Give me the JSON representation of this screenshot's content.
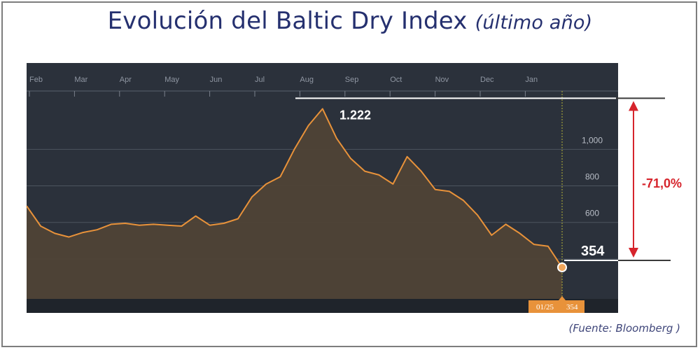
{
  "header": {
    "title_main": "Evolución del Baltic Dry Index",
    "title_sub": "(último año)"
  },
  "footer": {
    "source": "(Fuente: Bloomberg )"
  },
  "annotations": {
    "peak_label": "1.222",
    "last_label": "354",
    "change_label": "-71,0%",
    "badge_date": "01/25",
    "badge_value": "354"
  },
  "colors": {
    "plot_bg": "#2b313b",
    "bottom_strip": "#1f242b",
    "line": "#e8923a",
    "area_fill": "#4f4336",
    "arrow": "#d6242c",
    "badge": "#e8923a",
    "title": "#25306f"
  },
  "chart_data": {
    "type": "area",
    "title": "Evolución del Baltic Dry Index (último año)",
    "xlabel": "",
    "ylabel": "",
    "x_ticks": [
      "Feb",
      "Mar",
      "Apr",
      "May",
      "Jun",
      "Jul",
      "Aug",
      "Sep",
      "Oct",
      "Nov",
      "Dec",
      "Jan"
    ],
    "y_ticks": [
      "600",
      "800",
      "1,000"
    ],
    "ylim": [
      170,
      1300
    ],
    "grid": "horizontal",
    "series": [
      {
        "name": "",
        "x": [
          "Feb",
          "Feb",
          "Feb",
          "Mar",
          "Mar",
          "Mar",
          "Apr",
          "Apr",
          "Apr",
          "May",
          "May",
          "May",
          "Jun",
          "Jun",
          "Jun",
          "Jun",
          "Jul",
          "Jul",
          "Jul",
          "Jul",
          "Aug",
          "Aug",
          "Aug",
          "Sep",
          "Sep",
          "Sep",
          "Sep",
          "Oct",
          "Oct",
          "Oct",
          "Nov",
          "Nov",
          "Nov",
          "Dec",
          "Dec",
          "Dec",
          "Jan",
          "Jan",
          "Jan"
        ],
        "values": [
          690,
          580,
          540,
          520,
          545,
          560,
          590,
          595,
          585,
          590,
          585,
          580,
          635,
          585,
          595,
          620,
          740,
          810,
          850,
          1000,
          1130,
          1222,
          1060,
          950,
          880,
          860,
          810,
          960,
          880,
          780,
          770,
          720,
          640,
          530,
          590,
          540,
          480,
          470,
          354
        ]
      }
    ],
    "peak": {
      "x": "Aug",
      "value": 1222
    },
    "last": {
      "x": "01/25",
      "value": 354
    },
    "change_pct": -71.0
  }
}
